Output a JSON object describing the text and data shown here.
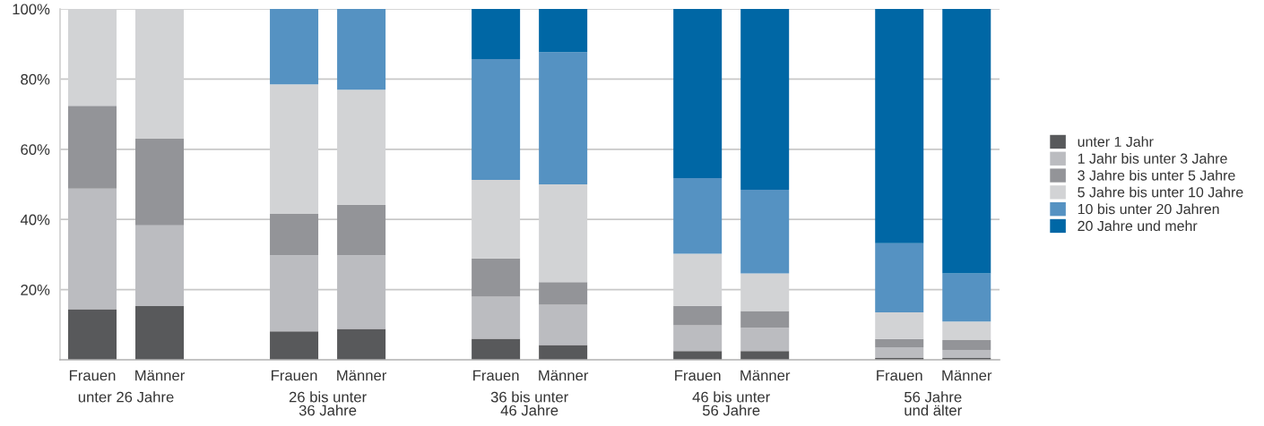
{
  "chart_data": {
    "type": "bar",
    "stacked": true,
    "categories": [
      "Frauen",
      "Männer",
      "Frauen",
      "Männer",
      "Frauen",
      "Männer",
      "Frauen",
      "Männer",
      "Frauen",
      "Männer"
    ],
    "series": [
      {
        "name": "unter 1 Jahr",
        "color": "#58595b",
        "values": [
          14.4,
          15.3,
          8.1,
          8.8,
          6.0,
          4.2,
          2.5,
          2.5,
          0.5,
          0.5
        ]
      },
      {
        "name": "1 Jahr bis unter 3 Jahre",
        "color": "#bbbcc0",
        "values": [
          34.4,
          23.0,
          21.7,
          21.0,
          12.0,
          11.5,
          7.3,
          6.6,
          3.1,
          2.3
        ]
      },
      {
        "name": "3 Jahre bis unter 5 Jahre",
        "color": "#939498",
        "values": [
          23.6,
          24.7,
          11.8,
          14.4,
          10.9,
          6.4,
          5.6,
          4.8,
          2.3,
          2.8
        ]
      },
      {
        "name": "5 Jahre bis unter 10 Jahre",
        "color": "#d2d3d5",
        "values": [
          27.6,
          37.0,
          36.9,
          32.8,
          22.4,
          27.9,
          14.8,
          10.7,
          7.6,
          5.3
        ]
      },
      {
        "name": "10 bis unter 20 Jahren",
        "color": "#5592c2",
        "values": [
          0,
          0,
          21.5,
          23.0,
          34.4,
          37.7,
          21.6,
          23.9,
          19.7,
          13.7
        ]
      },
      {
        "name": "20 Jahre und mehr",
        "color": "#0067a5",
        "values": [
          0,
          0,
          0,
          0,
          14.3,
          12.3,
          48.2,
          51.5,
          66.8,
          75.4
        ]
      }
    ],
    "annotations": [
      "unter 26 Jahre",
      "26 bis unter\n36 Jahre",
      "36 bis unter\n46 Jahre",
      "46 bis unter\n56 Jahre",
      "56 Jahre\nund älter"
    ],
    "ylim": [
      0,
      100
    ],
    "yticks": [
      {
        "value": 20,
        "label": "20%"
      },
      {
        "value": 40,
        "label": "40%"
      },
      {
        "value": 60,
        "label": "60%"
      },
      {
        "value": 80,
        "label": "80%"
      },
      {
        "value": 100,
        "label": "100%"
      }
    ],
    "grid": "y",
    "legend": "right"
  }
}
